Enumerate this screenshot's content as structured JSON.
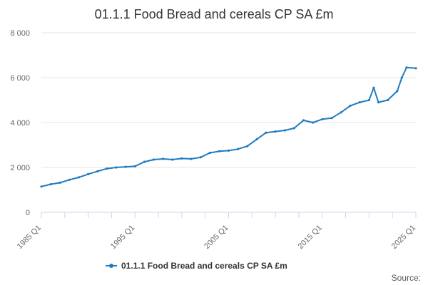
{
  "colors": {
    "series": "#1f7bbf",
    "grid": "#e6e6e6",
    "axis": "#ccd6eb"
  },
  "credit": "Source:",
  "chart_data": {
    "type": "line",
    "title": "01.1.1 Food Bread and cereals CP SA £m",
    "xlabel": "",
    "ylabel": "",
    "ylim": [
      0,
      8000
    ],
    "y_ticks": [
      0,
      2000,
      4000,
      6000,
      8000
    ],
    "y_tick_labels": [
      "0",
      "2 000",
      "4 000",
      "6 000",
      "8 000"
    ],
    "x_tick_labels": [
      "1985 Q1",
      "1995 Q1",
      "2005 Q1",
      "2015 Q1",
      "2025 Q1"
    ],
    "x_label_years": [
      1985,
      1995,
      2005,
      2015,
      2025
    ],
    "xlim": [
      1985,
      2025
    ],
    "grid": true,
    "legend": "bottom-center",
    "x_resolution": "yearly anchors of a quarterly series (approx. read)",
    "series": [
      {
        "name": "01.1.1 Food Bread and cereals CP SA £m",
        "x": [
          1985,
          1986,
          1987,
          1988,
          1989,
          1990,
          1991,
          1992,
          1993,
          1994,
          1995,
          1996,
          1997,
          1998,
          1999,
          2000,
          2001,
          2002,
          2003,
          2004,
          2005,
          2006,
          2007,
          2008,
          2009,
          2010,
          2011,
          2012,
          2013,
          2014,
          2015,
          2016,
          2017,
          2018,
          2019,
          2020,
          2020.5,
          2021,
          2022,
          2023,
          2023.5,
          2024,
          2025
        ],
        "values": [
          1150,
          1250,
          1320,
          1450,
          1560,
          1700,
          1830,
          1950,
          2000,
          2030,
          2050,
          2250,
          2350,
          2380,
          2350,
          2400,
          2380,
          2450,
          2650,
          2720,
          2750,
          2820,
          2950,
          3250,
          3550,
          3600,
          3650,
          3750,
          4100,
          4000,
          4150,
          4200,
          4450,
          4750,
          4900,
          5000,
          5550,
          4900,
          5000,
          5400,
          6000,
          6450,
          6420
        ]
      }
    ]
  }
}
